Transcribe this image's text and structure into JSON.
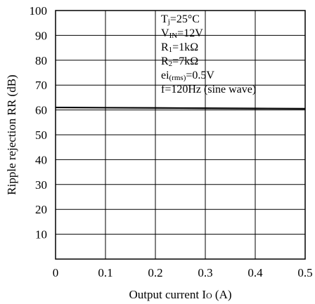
{
  "chart_data": {
    "type": "line",
    "xlabel": {
      "main": "Output current I",
      "sub": "O",
      "unit": " (A)"
    },
    "ylabel": "Ripple rejection RR (dB)",
    "xlim": [
      0,
      0.5
    ],
    "ylim": [
      0,
      100
    ],
    "x_ticks": [
      "0",
      "0.1",
      "0.2",
      "0.3",
      "0.4",
      "0.5"
    ],
    "y_ticks": [
      "10",
      "20",
      "30",
      "40",
      "50",
      "60",
      "70",
      "80",
      "90",
      "100"
    ],
    "grid": true,
    "series": [
      {
        "x": [
          0,
          0.1,
          0.2,
          0.3,
          0.4,
          0.5
        ],
        "y": [
          61,
          60.9,
          60.8,
          60.7,
          60.6,
          60.5
        ]
      }
    ],
    "conditions": [
      {
        "main": "T",
        "sub": "j",
        "rest": "=25°C"
      },
      {
        "main": "V",
        "sub": "IN",
        "rest": "=12V"
      },
      {
        "main": "R",
        "sub": "1",
        "rest": "=1kΩ"
      },
      {
        "main": "R",
        "sub": "2",
        "rest": "=7kΩ"
      },
      {
        "main": "ei",
        "sub": "(rms)",
        "rest": "=0.5V"
      },
      {
        "main": "f=120Hz (sine wave)",
        "sub": "",
        "rest": ""
      }
    ]
  }
}
